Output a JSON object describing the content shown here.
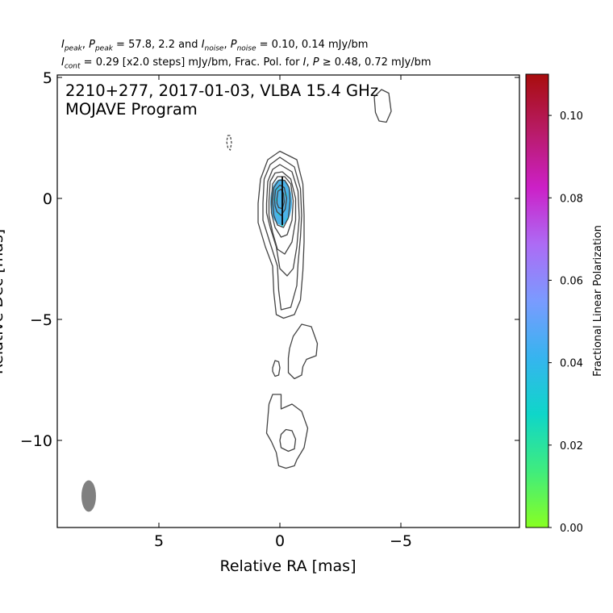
{
  "header": {
    "line1": {
      "i_peak": "I",
      "i_peak_sub": "peak",
      "p_peak": "P",
      "p_peak_sub": "peak",
      "peak_values": " = 57.8, 2.2 and ",
      "i_noise": "I",
      "i_noise_sub": "noise",
      "p_noise": "P",
      "p_noise_sub": "noise",
      "noise_values": " = 0.10, 0.14 mJy/bm"
    },
    "line2": {
      "i_cont": "I",
      "i_cont_sub": "cont",
      "text_a": " = 0.29 [x2.0 steps] mJy/bm, Frac. Pol. for ",
      "i_sym": "I",
      "comma": ", ",
      "p_sym": "P",
      "text_b": " ≥ 0.48, 0.72 mJy/bm"
    }
  },
  "chart_data": {
    "type": "contour",
    "title": "2210+277, 2017-01-03, VLBA 15.4 GHz",
    "subtitle": "MOJAVE Program",
    "xlabel": "Relative RA [mas]",
    "ylabel": "Relative Dec [mas]",
    "xlim": [
      9.2,
      -9.9
    ],
    "ylim": [
      -13.6,
      5.1
    ],
    "xticks": [
      5,
      0,
      -5
    ],
    "xtick_labels": [
      "5",
      "0",
      "−5"
    ],
    "yticks": [
      5,
      0,
      -5,
      -10
    ],
    "ytick_labels": [
      "5",
      "0",
      "−5",
      "−10"
    ],
    "contour_color": "#444444",
    "contours": [
      {
        "level": 1,
        "dashed": false,
        "points": [
          [
            0.9,
            -0.2
          ],
          [
            0.8,
            0.8
          ],
          [
            0.5,
            1.6
          ],
          [
            0.0,
            1.95
          ],
          [
            -0.7,
            1.6
          ],
          [
            -0.95,
            0.6
          ],
          [
            -1.0,
            -0.7
          ],
          [
            -1.0,
            -1.8
          ],
          [
            -0.95,
            -3.0
          ],
          [
            -0.85,
            -4.2
          ],
          [
            -0.6,
            -4.8
          ],
          [
            -0.15,
            -4.95
          ],
          [
            0.15,
            -4.8
          ],
          [
            0.25,
            -3.9
          ],
          [
            0.3,
            -2.8
          ],
          [
            0.6,
            -2.0
          ],
          [
            0.9,
            -1.0
          ]
        ]
      },
      {
        "level": 2,
        "dashed": false,
        "points": [
          [
            0.7,
            -0.2
          ],
          [
            0.65,
            0.8
          ],
          [
            0.4,
            1.4
          ],
          [
            0.0,
            1.7
          ],
          [
            -0.6,
            1.3
          ],
          [
            -0.85,
            0.4
          ],
          [
            -0.9,
            -0.7
          ],
          [
            -0.85,
            -1.6
          ],
          [
            -0.75,
            -2.7
          ],
          [
            -0.7,
            -3.6
          ],
          [
            -0.45,
            -4.5
          ],
          [
            -0.05,
            -4.6
          ],
          [
            0.05,
            -3.8
          ],
          [
            0.1,
            -2.8
          ],
          [
            0.45,
            -1.7
          ],
          [
            0.7,
            -0.9
          ]
        ]
      },
      {
        "level": 4,
        "dashed": false,
        "points": [
          [
            0.55,
            -0.2
          ],
          [
            0.5,
            0.7
          ],
          [
            0.3,
            1.2
          ],
          [
            0.0,
            1.4
          ],
          [
            -0.5,
            1.1
          ],
          [
            -0.75,
            0.3
          ],
          [
            -0.8,
            -0.8
          ],
          [
            -0.7,
            -2.0
          ],
          [
            -0.55,
            -2.9
          ],
          [
            -0.3,
            -3.2
          ],
          [
            0.0,
            -2.9
          ],
          [
            0.15,
            -2.0
          ],
          [
            0.4,
            -1.2
          ],
          [
            0.55,
            -0.6
          ]
        ]
      },
      {
        "level": 8,
        "dashed": false,
        "points": [
          [
            0.45,
            -0.1
          ],
          [
            0.4,
            0.7
          ],
          [
            0.2,
            1.05
          ],
          [
            -0.1,
            1.1
          ],
          [
            -0.45,
            0.8
          ],
          [
            -0.65,
            0.0
          ],
          [
            -0.65,
            -0.9
          ],
          [
            -0.5,
            -1.8
          ],
          [
            -0.2,
            -2.3
          ],
          [
            0.1,
            -2.1
          ],
          [
            0.3,
            -1.4
          ],
          [
            0.45,
            -0.7
          ]
        ]
      },
      {
        "level": 16,
        "dashed": false,
        "points": [
          [
            0.35,
            -0.1
          ],
          [
            0.3,
            0.6
          ],
          [
            0.1,
            0.9
          ],
          [
            -0.2,
            0.9
          ],
          [
            -0.45,
            0.6
          ],
          [
            -0.55,
            -0.1
          ],
          [
            -0.5,
            -0.9
          ],
          [
            -0.3,
            -1.5
          ],
          [
            -0.05,
            -1.6
          ],
          [
            0.2,
            -1.2
          ],
          [
            0.35,
            -0.6
          ]
        ]
      },
      {
        "level": 32,
        "dashed": false,
        "points": [
          [
            0.3,
            -0.1
          ],
          [
            0.25,
            0.45
          ],
          [
            0.05,
            0.75
          ],
          [
            -0.2,
            0.75
          ],
          [
            -0.38,
            0.45
          ],
          [
            -0.42,
            -0.1
          ],
          [
            -0.35,
            -0.8
          ],
          [
            -0.15,
            -1.2
          ],
          [
            0.1,
            -1.1
          ],
          [
            0.25,
            -0.7
          ]
        ]
      },
      {
        "level": 64,
        "dashed": false,
        "points": [
          [
            0.22,
            -0.05
          ],
          [
            0.18,
            0.35
          ],
          [
            0.0,
            0.55
          ],
          [
            -0.18,
            0.45
          ],
          [
            -0.28,
            0.0
          ],
          [
            -0.22,
            -0.45
          ],
          [
            -0.05,
            -0.7
          ],
          [
            0.12,
            -0.55
          ],
          [
            0.2,
            -0.3
          ]
        ]
      },
      {
        "level": 128,
        "dashed": false,
        "points": [
          [
            0.12,
            0.0
          ],
          [
            0.08,
            0.3
          ],
          [
            -0.05,
            0.38
          ],
          [
            -0.15,
            0.2
          ],
          [
            -0.18,
            -0.15
          ],
          [
            -0.1,
            -0.42
          ],
          [
            0.05,
            -0.38
          ],
          [
            0.12,
            -0.2
          ]
        ]
      },
      {
        "level": 1,
        "dashed": false,
        "points": [
          [
            -0.4,
            -6.2
          ],
          [
            -0.55,
            -5.7
          ],
          [
            -0.9,
            -5.2
          ],
          [
            -1.3,
            -5.3
          ],
          [
            -1.55,
            -6.0
          ],
          [
            -1.5,
            -6.5
          ],
          [
            -1.1,
            -6.65
          ],
          [
            -0.95,
            -6.95
          ],
          [
            -0.9,
            -7.3
          ],
          [
            -0.6,
            -7.45
          ],
          [
            -0.35,
            -7.2
          ],
          [
            -0.35,
            -6.6
          ]
        ]
      },
      {
        "level": 1,
        "dashed": false,
        "points": [
          [
            0.3,
            -7.0
          ],
          [
            0.2,
            -6.7
          ],
          [
            0.05,
            -6.75
          ],
          [
            0.0,
            -7.0
          ],
          [
            0.05,
            -7.3
          ],
          [
            0.2,
            -7.35
          ],
          [
            0.3,
            -7.15
          ]
        ]
      },
      {
        "level": 1,
        "dashed": false,
        "points": [
          [
            0.5,
            -9.1
          ],
          [
            0.45,
            -8.5
          ],
          [
            0.3,
            -8.1
          ],
          [
            -0.05,
            -8.1
          ],
          [
            -0.05,
            -8.7
          ],
          [
            -0.5,
            -8.5
          ],
          [
            -0.9,
            -8.8
          ],
          [
            -1.15,
            -9.5
          ],
          [
            -1.0,
            -10.3
          ],
          [
            -0.7,
            -10.8
          ],
          [
            -0.6,
            -11.05
          ],
          [
            -0.25,
            -11.15
          ],
          [
            0.05,
            -11.05
          ],
          [
            0.15,
            -10.5
          ],
          [
            0.35,
            -10.05
          ],
          [
            0.55,
            -9.7
          ]
        ]
      },
      {
        "level": 1,
        "dashed": false,
        "points": [
          [
            -0.05,
            -9.75
          ],
          [
            -0.25,
            -9.55
          ],
          [
            -0.5,
            -9.6
          ],
          [
            -0.65,
            -9.95
          ],
          [
            -0.6,
            -10.35
          ],
          [
            -0.35,
            -10.45
          ],
          [
            -0.05,
            -10.3
          ],
          [
            0.0,
            -10.0
          ]
        ]
      },
      {
        "level": 1,
        "dashed": false,
        "points": [
          [
            -3.9,
            4.2
          ],
          [
            -4.2,
            4.5
          ],
          [
            -4.5,
            4.35
          ],
          [
            -4.6,
            3.6
          ],
          [
            -4.4,
            3.15
          ],
          [
            -4.1,
            3.2
          ],
          [
            -3.95,
            3.55
          ]
        ]
      },
      {
        "level": -1,
        "dashed": true,
        "points": [
          [
            2.15,
            2.6
          ],
          [
            2.05,
            2.6
          ],
          [
            2.0,
            2.3
          ],
          [
            2.05,
            2.0
          ],
          [
            2.15,
            2.1
          ],
          [
            2.2,
            2.35
          ]
        ]
      }
    ],
    "polarization_region": {
      "center": [
        -0.05,
        -0.15
      ],
      "semi_axes": [
        0.45,
        0.95
      ],
      "frac_pol": 0.035,
      "color": "#4cb3e8",
      "speckle_color": "#1fcfd9"
    },
    "evpa_vectors": [
      [
        [
          -0.1,
          0.9
        ],
        [
          -0.1,
          -1.1
        ]
      ]
    ],
    "beam": {
      "center": [
        7.9,
        -12.3
      ],
      "semi_axes": [
        0.3,
        0.65
      ],
      "color": "#808080"
    },
    "colorbar": {
      "label": "Fractional Linear Polarization",
      "min": 0.0,
      "max": 0.11,
      "ticks": [
        0.0,
        0.02,
        0.04,
        0.06,
        0.08,
        0.1
      ],
      "tick_labels": [
        "0.00",
        "0.02",
        "0.04",
        "0.06",
        "0.08",
        "0.10"
      ],
      "colors": [
        "#88ff22",
        "#3fec7e",
        "#0fd6c9",
        "#36b4ef",
        "#7a9bff",
        "#ad6bf5",
        "#cc20c7",
        "#b81b66",
        "#a80d0d"
      ]
    }
  }
}
